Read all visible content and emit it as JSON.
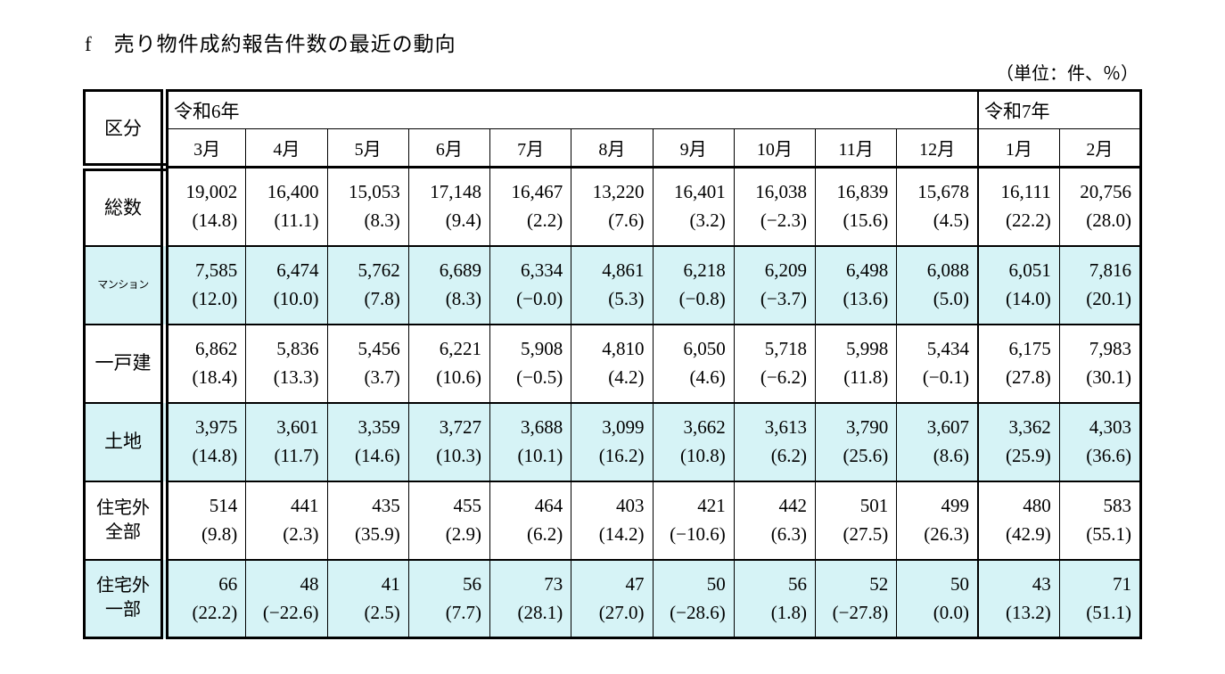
{
  "page": {
    "title": "f　売り物件成約報告件数の最近の動向",
    "unit_label": "（単位：件、％）"
  },
  "table": {
    "corner_label": "区分",
    "year_groups": [
      {
        "label": "令和6年",
        "span": 10
      },
      {
        "label": "令和7年",
        "span": 2
      }
    ],
    "months": [
      "3月",
      "4月",
      "5月",
      "6月",
      "7月",
      "8月",
      "9月",
      "10月",
      "11月",
      "12月",
      "1月",
      "2月"
    ],
    "rows": [
      {
        "label": "総数",
        "highlight": false,
        "cells": [
          {
            "value": "19,002",
            "rate": "(14.8)"
          },
          {
            "value": "16,400",
            "rate": "(11.1)"
          },
          {
            "value": "15,053",
            "rate": "(8.3)"
          },
          {
            "value": "17,148",
            "rate": "(9.4)"
          },
          {
            "value": "16,467",
            "rate": "(2.2)"
          },
          {
            "value": "13,220",
            "rate": "(7.6)"
          },
          {
            "value": "16,401",
            "rate": "(3.2)"
          },
          {
            "value": "16,038",
            "rate": "(−2.3)"
          },
          {
            "value": "16,839",
            "rate": "(15.6)"
          },
          {
            "value": "15,678",
            "rate": "(4.5)"
          },
          {
            "value": "16,111",
            "rate": "(22.2)"
          },
          {
            "value": "20,756",
            "rate": "(28.0)"
          }
        ]
      },
      {
        "label": "マンション",
        "highlight": true,
        "label_small": true,
        "cells": [
          {
            "value": "7,585",
            "rate": "(12.0)"
          },
          {
            "value": "6,474",
            "rate": "(10.0)"
          },
          {
            "value": "5,762",
            "rate": "(7.8)"
          },
          {
            "value": "6,689",
            "rate": "(8.3)"
          },
          {
            "value": "6,334",
            "rate": "(−0.0)"
          },
          {
            "value": "4,861",
            "rate": "(5.3)"
          },
          {
            "value": "6,218",
            "rate": "(−0.8)"
          },
          {
            "value": "6,209",
            "rate": "(−3.7)"
          },
          {
            "value": "6,498",
            "rate": "(13.6)"
          },
          {
            "value": "6,088",
            "rate": "(5.0)"
          },
          {
            "value": "6,051",
            "rate": "(14.0)"
          },
          {
            "value": "7,816",
            "rate": "(20.1)"
          }
        ]
      },
      {
        "label": "一戸建",
        "highlight": false,
        "cells": [
          {
            "value": "6,862",
            "rate": "(18.4)"
          },
          {
            "value": "5,836",
            "rate": "(13.3)"
          },
          {
            "value": "5,456",
            "rate": "(3.7)"
          },
          {
            "value": "6,221",
            "rate": "(10.6)"
          },
          {
            "value": "5,908",
            "rate": "(−0.5)"
          },
          {
            "value": "4,810",
            "rate": "(4.2)"
          },
          {
            "value": "6,050",
            "rate": "(4.6)"
          },
          {
            "value": "5,718",
            "rate": "(−6.2)"
          },
          {
            "value": "5,998",
            "rate": "(11.8)"
          },
          {
            "value": "5,434",
            "rate": "(−0.1)"
          },
          {
            "value": "6,175",
            "rate": "(27.8)"
          },
          {
            "value": "7,983",
            "rate": "(30.1)"
          }
        ]
      },
      {
        "label": "土地",
        "highlight": true,
        "cells": [
          {
            "value": "3,975",
            "rate": "(14.8)"
          },
          {
            "value": "3,601",
            "rate": "(11.7)"
          },
          {
            "value": "3,359",
            "rate": "(14.6)"
          },
          {
            "value": "3,727",
            "rate": "(10.3)"
          },
          {
            "value": "3,688",
            "rate": "(10.1)"
          },
          {
            "value": "3,099",
            "rate": "(16.2)"
          },
          {
            "value": "3,662",
            "rate": "(10.8)"
          },
          {
            "value": "3,613",
            "rate": "(6.2)"
          },
          {
            "value": "3,790",
            "rate": "(25.6)"
          },
          {
            "value": "3,607",
            "rate": "(8.6)"
          },
          {
            "value": "3,362",
            "rate": "(25.9)"
          },
          {
            "value": "4,303",
            "rate": "(36.6)"
          }
        ]
      },
      {
        "label": "住宅外",
        "label2": "全部",
        "highlight": false,
        "cells": [
          {
            "value": "514",
            "rate": "(9.8)"
          },
          {
            "value": "441",
            "rate": "(2.3)"
          },
          {
            "value": "435",
            "rate": "(35.9)"
          },
          {
            "value": "455",
            "rate": "(2.9)"
          },
          {
            "value": "464",
            "rate": "(6.2)"
          },
          {
            "value": "403",
            "rate": "(14.2)"
          },
          {
            "value": "421",
            "rate": "(−10.6)"
          },
          {
            "value": "442",
            "rate": "(6.3)"
          },
          {
            "value": "501",
            "rate": "(27.5)"
          },
          {
            "value": "499",
            "rate": "(26.3)"
          },
          {
            "value": "480",
            "rate": "(42.9)"
          },
          {
            "value": "583",
            "rate": "(55.1)"
          }
        ]
      },
      {
        "label": "住宅外",
        "label2": "一部",
        "highlight": true,
        "cells": [
          {
            "value": "66",
            "rate": "(22.2)"
          },
          {
            "value": "48",
            "rate": "(−22.6)"
          },
          {
            "value": "41",
            "rate": "(2.5)"
          },
          {
            "value": "56",
            "rate": "(7.7)"
          },
          {
            "value": "73",
            "rate": "(28.1)"
          },
          {
            "value": "47",
            "rate": "(27.0)"
          },
          {
            "value": "50",
            "rate": "(−28.6)"
          },
          {
            "value": "56",
            "rate": "(1.8)"
          },
          {
            "value": "52",
            "rate": "(−27.8)"
          },
          {
            "value": "50",
            "rate": "(0.0)"
          },
          {
            "value": "43",
            "rate": "(13.2)"
          },
          {
            "value": "71",
            "rate": "(51.1)"
          }
        ]
      }
    ],
    "highlight_color": "#d6f3f6",
    "border_color": "#000000"
  }
}
